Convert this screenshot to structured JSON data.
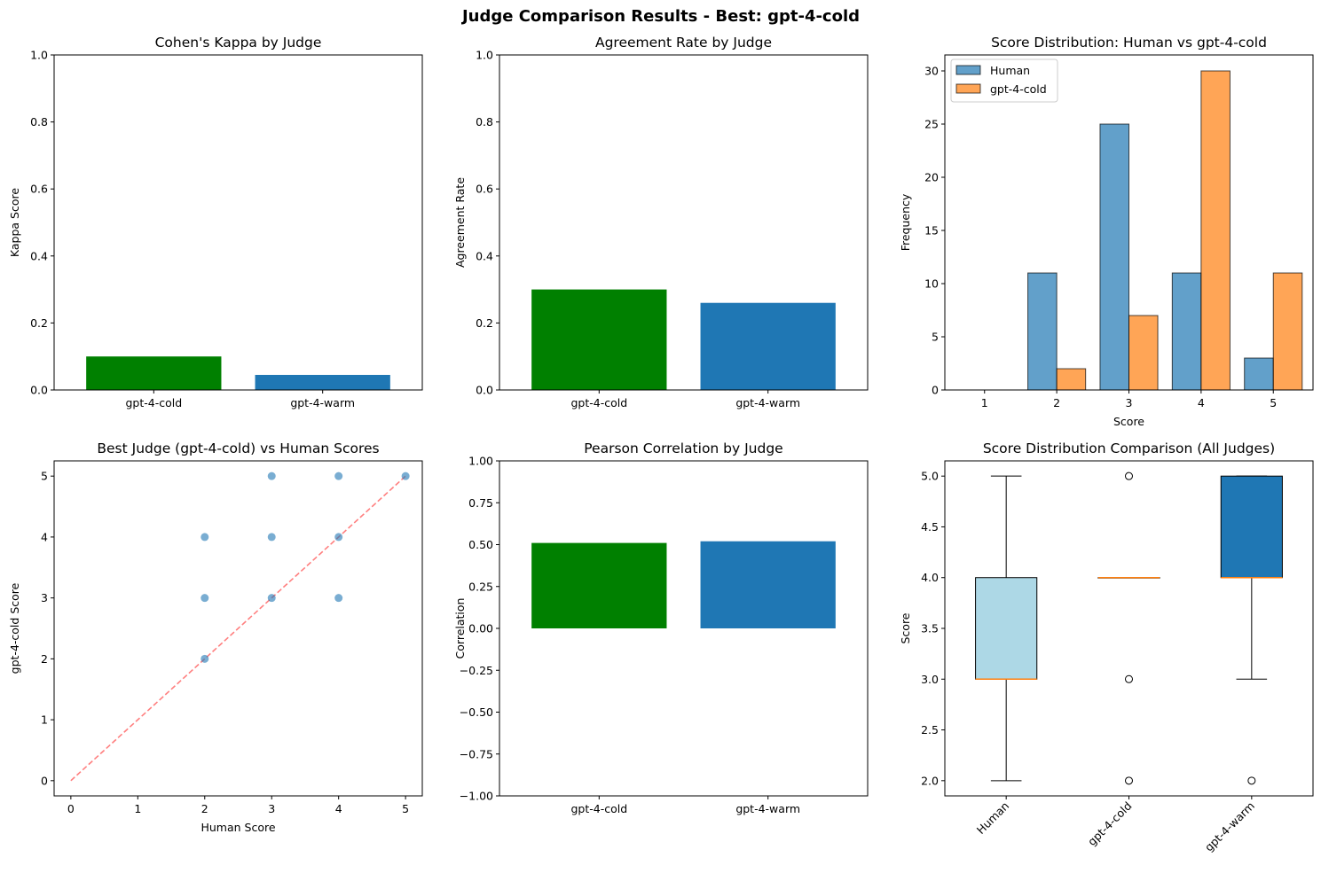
{
  "figure": {
    "suptitle": "Judge Comparison Results - Best: gpt-4-cold"
  },
  "colors": {
    "green": "#008000",
    "blue": "#1f77b4",
    "orange": "#ff7f0e",
    "light_blue": "#add8e6",
    "ref_line": "#ff7f7f",
    "median": "#ff7f0e"
  },
  "chart_data": [
    {
      "type": "bar",
      "title": "Cohen's Kappa by Judge",
      "xlabel": "",
      "ylabel": "Kappa Score",
      "categories": [
        "gpt-4-cold",
        "gpt-4-warm"
      ],
      "values": [
        0.1,
        0.045
      ],
      "bar_colors": [
        "green",
        "blue"
      ],
      "ylim": [
        0,
        1
      ],
      "yticks": [
        "0.0",
        "0.2",
        "0.4",
        "0.6",
        "0.8",
        "1.0"
      ]
    },
    {
      "type": "bar",
      "title": "Agreement Rate by Judge",
      "xlabel": "",
      "ylabel": "Agreement Rate",
      "categories": [
        "gpt-4-cold",
        "gpt-4-warm"
      ],
      "values": [
        0.3,
        0.26
      ],
      "bar_colors": [
        "green",
        "blue"
      ],
      "ylim": [
        0,
        1
      ],
      "yticks": [
        "0.0",
        "0.2",
        "0.4",
        "0.6",
        "0.8",
        "1.0"
      ]
    },
    {
      "type": "bar",
      "title": "Score Distribution: Human vs gpt-4-cold",
      "xlabel": "Score",
      "ylabel": "Frequency",
      "categories": [
        "1",
        "2",
        "3",
        "4",
        "5"
      ],
      "series": [
        {
          "name": "Human",
          "values": [
            0,
            11,
            25,
            11,
            3
          ]
        },
        {
          "name": "gpt-4-cold",
          "values": [
            0,
            2,
            7,
            30,
            11
          ]
        }
      ],
      "ylim": [
        0,
        31.5
      ],
      "yticks": [
        "0",
        "5",
        "10",
        "15",
        "20",
        "25",
        "30"
      ],
      "legend": "top-left"
    },
    {
      "type": "scatter",
      "title": "Best Judge (gpt-4-cold) vs Human Scores",
      "xlabel": "Human Score",
      "ylabel": "gpt-4-cold Score",
      "points": [
        [
          2,
          4
        ],
        [
          2,
          3
        ],
        [
          2,
          2
        ],
        [
          3,
          5
        ],
        [
          3,
          4
        ],
        [
          3,
          3
        ],
        [
          4,
          5
        ],
        [
          4,
          4
        ],
        [
          4,
          3
        ],
        [
          5,
          5
        ]
      ],
      "reference_line": [
        [
          0,
          0
        ],
        [
          5,
          5
        ]
      ],
      "xlim": [
        -0.25,
        5.25
      ],
      "ylim": [
        -0.25,
        5.25
      ],
      "xticks": [
        "0",
        "1",
        "2",
        "3",
        "4",
        "5"
      ],
      "yticks": [
        "0",
        "1",
        "2",
        "3",
        "4",
        "5"
      ]
    },
    {
      "type": "bar",
      "title": "Pearson Correlation by Judge",
      "xlabel": "",
      "ylabel": "Correlation",
      "categories": [
        "gpt-4-cold",
        "gpt-4-warm"
      ],
      "values": [
        0.51,
        0.52
      ],
      "bar_colors": [
        "green",
        "blue"
      ],
      "ylim": [
        -1,
        1
      ],
      "yticks": [
        "−1.00",
        "−0.75",
        "−0.50",
        "−0.25",
        "0.00",
        "0.25",
        "0.50",
        "0.75",
        "1.00"
      ]
    },
    {
      "type": "box",
      "title": "Score Distribution Comparison (All Judges)",
      "xlabel": "",
      "ylabel": "Score",
      "categories": [
        "Human",
        "gpt-4-cold",
        "gpt-4-warm"
      ],
      "boxes": [
        {
          "whisker_low": 2,
          "q1": 3,
          "median": 3,
          "q3": 4,
          "whisker_high": 5,
          "outliers": [],
          "fill": "light_blue"
        },
        {
          "whisker_low": 4,
          "q1": 4,
          "median": 4,
          "q3": 4,
          "whisker_high": 4,
          "outliers": [
            2,
            3,
            5
          ],
          "fill": "orange"
        },
        {
          "whisker_low": 3,
          "q1": 4,
          "median": 4,
          "q3": 5,
          "whisker_high": 5,
          "outliers": [
            2
          ],
          "fill": "blue"
        }
      ],
      "ylim": [
        1.85,
        5.15
      ],
      "yticks": [
        "2.0",
        "2.5",
        "3.0",
        "3.5",
        "4.0",
        "4.5",
        "5.0"
      ]
    }
  ]
}
